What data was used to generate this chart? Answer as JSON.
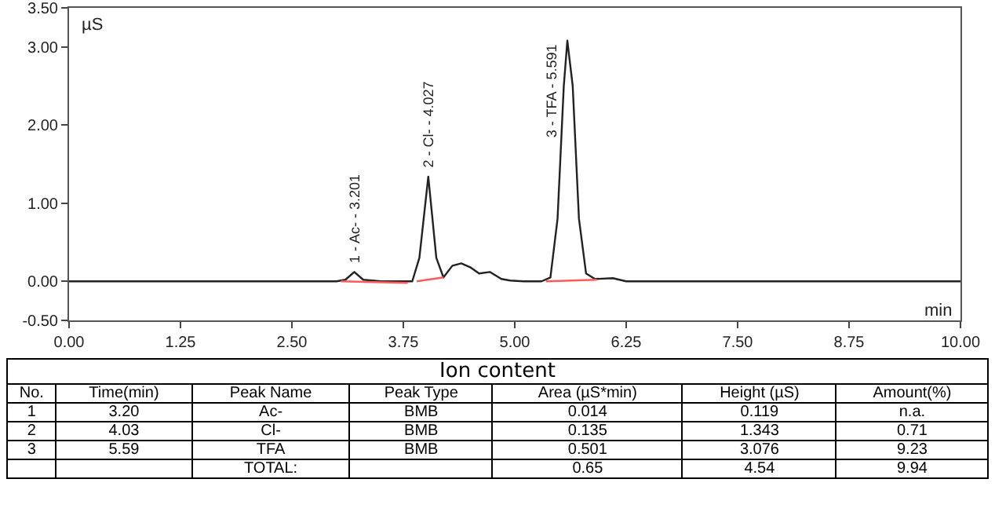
{
  "chart_data": [
    {
      "type": "line",
      "xlabel": "min",
      "ylabel": "µS",
      "xlim": [
        0,
        10
      ],
      "ylim": [
        -0.5,
        3.5
      ],
      "xticks": [
        {
          "value": 0,
          "label": "0.00"
        },
        {
          "value": 1.25,
          "label": "1.25"
        },
        {
          "value": 2.5,
          "label": "2.50"
        },
        {
          "value": 3.75,
          "label": "3.75"
        },
        {
          "value": 5,
          "label": "5.00"
        },
        {
          "value": 6.25,
          "label": "6.25"
        },
        {
          "value": 7.5,
          "label": "7.50"
        },
        {
          "value": 8.75,
          "label": "8.75"
        },
        {
          "value": 10,
          "label": "10.00"
        }
      ],
      "yticks": [
        {
          "value": -0.5,
          "label": "-0.50"
        },
        {
          "value": 0,
          "label": "0.00"
        },
        {
          "value": 1,
          "label": "1.00"
        },
        {
          "value": 2,
          "label": "2.00"
        },
        {
          "value": 3,
          "label": "3.00"
        },
        {
          "value": 3.5,
          "label": "3.50"
        }
      ],
      "grid": false,
      "line_style": "solid",
      "series": [
        {
          "color": "#222222",
          "x": [
            0,
            3.0,
            3.1,
            3.2,
            3.3,
            3.5,
            3.85,
            3.93,
            4.03,
            4.12,
            4.2,
            4.3,
            4.4,
            4.5,
            4.6,
            4.72,
            4.85,
            4.95,
            5.1,
            5.3,
            5.4,
            5.48,
            5.55,
            5.59,
            5.65,
            5.72,
            5.8,
            5.9,
            6.1,
            6.25,
            10
          ],
          "values": [
            0,
            0,
            0.02,
            0.12,
            0.02,
            0,
            0,
            0.3,
            1.34,
            0.3,
            0.05,
            0.2,
            0.23,
            0.18,
            0.1,
            0.12,
            0.03,
            0.01,
            0,
            0,
            0.05,
            0.8,
            2.5,
            3.08,
            2.5,
            0.8,
            0.1,
            0.03,
            0.04,
            0,
            0
          ]
        },
        {
          "color": "#ff5a5a",
          "x": [
            3.05,
            3.8,
            3.84,
            3.9,
            4.2,
            5.0,
            5.35,
            5.92
          ],
          "values": [
            0,
            -0.02,
            null,
            0,
            0.05,
            null,
            0,
            0.02
          ]
        }
      ],
      "annotations": [
        {
          "text": "1 - Ac- - 3.201",
          "x": 3.201,
          "y": 0.2
        },
        {
          "text": "2 - Cl- - 4.027",
          "x": 4.027,
          "y": 1.42
        },
        {
          "text": "3 - TFA - 5.591",
          "x": 5.591,
          "y": 1.8
        }
      ]
    },
    {
      "type": "other",
      "title": "Ion content",
      "categories": [
        "No.",
        "Time(min)",
        "Peak Name",
        "Peak Type",
        "Area (µS*min)",
        "Height (µS)",
        "Amount(%)"
      ],
      "annotations": [
        "1",
        "3.20",
        "Ac-",
        "BMB",
        "0.014",
        "0.119",
        "n.a.",
        "2",
        "4.03",
        "Cl-",
        "BMB",
        "0.135",
        "1.343",
        "0.71",
        "3",
        "5.59",
        "TFA",
        "BMB",
        "0.501",
        "3.076",
        "9.23",
        null,
        null,
        "TOTAL:",
        null,
        "0.65",
        "4.54",
        "9.94"
      ]
    }
  ]
}
